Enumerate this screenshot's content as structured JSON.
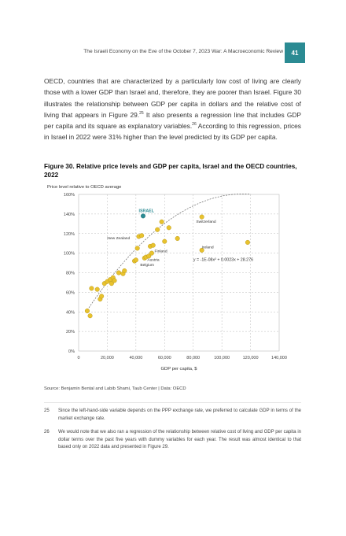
{
  "header": {
    "title": "The Israeli Economy on the Eve of the October 7, 2023 War: A Macroeconomic Review",
    "page_number": "41"
  },
  "body": {
    "text_before_fn25": "OECD, countries that are characterized by a particularly low cost of living are clearly those with a lower GDP than Israel and, therefore, they are poorer than Israel. Figure 30 illustrates the relationship between GDP per capita in dollars and the relative cost of living that appears in Figure 29.",
    "fn25_ref": "25",
    "text_between": " It also presents a regression line that includes GDP per capita and its square as explanatory variables.",
    "fn26_ref": "26",
    "text_after": " According to this regression, prices in Israel in 2022 were 31% higher than the level predicted by its GDP per capita."
  },
  "figure": {
    "title": "Figure 30. Relative price levels and GDP per capita, Israel and the OECD countries, 2022",
    "source": "Source: Benjamin Bental and Labib Shami, Taub Center | Data: OECD"
  },
  "chart_data": {
    "type": "scatter",
    "ylabel": "Price level relative to OECD average",
    "xlabel": "GDP per capita, $",
    "xlim": [
      0,
      140000
    ],
    "ylim": [
      0,
      160
    ],
    "x_ticks": [
      "0",
      "20,000",
      "40,000",
      "60,000",
      "80,000",
      "100,000",
      "120,000",
      "140,000"
    ],
    "y_ticks": [
      "0%",
      "20%",
      "40%",
      "60%",
      "80%",
      "100%",
      "120%",
      "140%",
      "160%"
    ],
    "grid": true,
    "regression_equation": "y = -1E-08x² + 0.0023x + 28.276",
    "point_color": "#e8c22e",
    "highlight_color": "#2b8b93",
    "points": [
      {
        "x": 6000,
        "y": 41
      },
      {
        "x": 8000,
        "y": 36
      },
      {
        "x": 9000,
        "y": 64
      },
      {
        "x": 13000,
        "y": 63
      },
      {
        "x": 15000,
        "y": 53
      },
      {
        "x": 16000,
        "y": 56
      },
      {
        "x": 18000,
        "y": 69
      },
      {
        "x": 20000,
        "y": 71
      },
      {
        "x": 22000,
        "y": 73
      },
      {
        "x": 23000,
        "y": 69
      },
      {
        "x": 24000,
        "y": 75
      },
      {
        "x": 25000,
        "y": 72
      },
      {
        "x": 28000,
        "y": 80
      },
      {
        "x": 31000,
        "y": 79
      },
      {
        "x": 32000,
        "y": 82
      },
      {
        "x": 39000,
        "y": 92
      },
      {
        "x": 40000,
        "y": 93
      },
      {
        "x": 41000,
        "y": 105
      },
      {
        "x": 42000,
        "y": 117
      },
      {
        "x": 44000,
        "y": 118
      },
      {
        "x": 46000,
        "y": 95
      },
      {
        "x": 47000,
        "y": 96
      },
      {
        "x": 49000,
        "y": 97
      },
      {
        "x": 50000,
        "y": 107
      },
      {
        "x": 52000,
        "y": 108
      },
      {
        "x": 51000,
        "y": 100
      },
      {
        "x": 55000,
        "y": 124
      },
      {
        "x": 58000,
        "y": 132
      },
      {
        "x": 60000,
        "y": 112
      },
      {
        "x": 63000,
        "y": 126
      },
      {
        "x": 69000,
        "y": 115
      },
      {
        "x": 86000,
        "y": 103
      },
      {
        "x": 86000,
        "y": 137
      },
      {
        "x": 118000,
        "y": 111
      }
    ],
    "highlight_point": {
      "x": 45000,
      "y": 138
    },
    "labels": [
      {
        "text": "ISRAEL",
        "x": 42000,
        "y": 142,
        "highlight": true
      },
      {
        "text": "Switzerland",
        "x": 82000,
        "y": 131
      },
      {
        "text": "New Zealand",
        "x": 20000,
        "y": 114
      },
      {
        "text": "Ireland",
        "x": 86000,
        "y": 105
      },
      {
        "text": "Finland",
        "x": 53000,
        "y": 101
      },
      {
        "text": "Austria",
        "x": 48000,
        "y": 92
      },
      {
        "text": "Belgium",
        "x": 43000,
        "y": 87
      }
    ],
    "regression": {
      "a": -1e-08,
      "b": 0.0023,
      "c": 28.276
    }
  },
  "footnotes": [
    {
      "num": "25",
      "text": "Since the left-hand-side variable depends on the PPP exchange rate, we preferred to calculate GDP in terms of the market exchange rate."
    },
    {
      "num": "26",
      "text": "We would note that we also ran a regression of the relationship between relative cost of living and GDP per capita in dollar terms over the past five years with dummy variables for each year. The result was almost identical to that based only on 2022 data and presented in Figure 29."
    }
  ]
}
